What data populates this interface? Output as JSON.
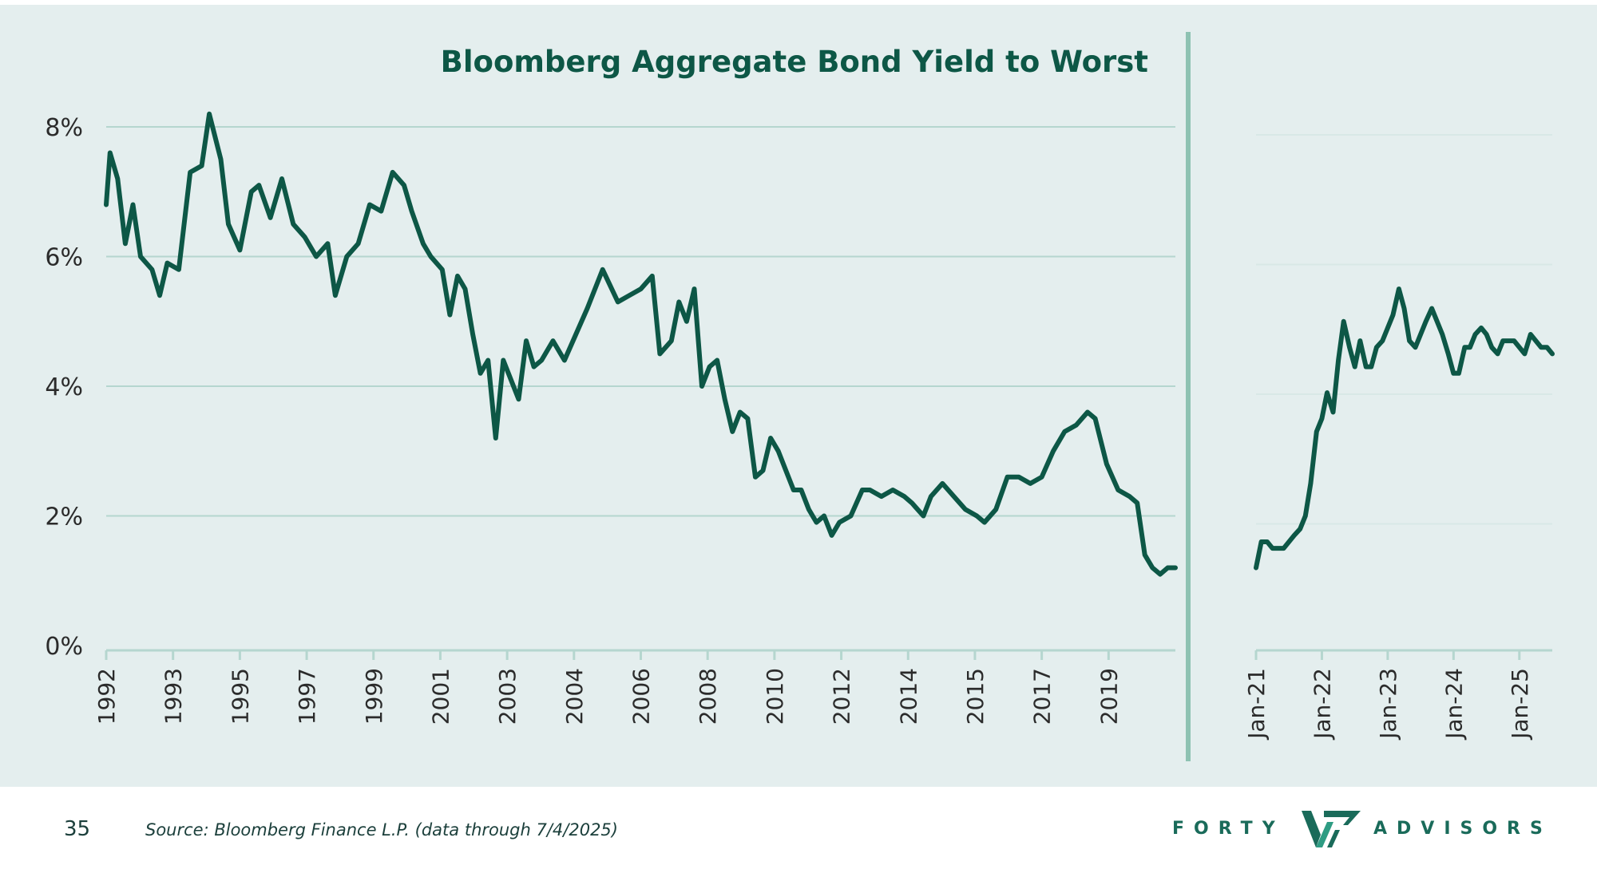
{
  "slide": {
    "page_number": "35",
    "source": "Source: Bloomberg Finance L.P. (data through 7/4/2025)",
    "logo": {
      "left_word": "FORTY",
      "right_word": "ADVISORS",
      "mark_icon": "forty-w-mark-icon"
    }
  },
  "colors": {
    "panel": "#e4eeee",
    "line": "#0d5746",
    "grid": "#b5d6cf",
    "divider": "#8ec2b2",
    "title": "#0d5746"
  },
  "chart_data": [
    {
      "type": "line",
      "title": "Bloomberg Aggregate Bond Yield to Worst",
      "xlabel": "",
      "ylabel": "",
      "ylim": [
        0,
        8
      ],
      "y_ticks": [
        "0%",
        "2%",
        "4%",
        "6%",
        "8%"
      ],
      "y_tick_values": [
        0,
        2,
        4,
        6,
        8
      ],
      "grid": true,
      "x_range": [
        1992.0,
        2020.0
      ],
      "x_tick_labels": [
        "1992",
        "1993",
        "1995",
        "1997",
        "1999",
        "2001",
        "2003",
        "2004",
        "2006",
        "2008",
        "2010",
        "2012",
        "2014",
        "2015",
        "2017",
        "2019"
      ],
      "x_tick_values": [
        1992.0,
        1993.75,
        1995.5,
        1997.25,
        1999.0,
        2000.75,
        2002.5,
        2004.25,
        2006.0,
        2007.75,
        2009.5,
        2011.25,
        2013.0,
        2014.75,
        2016.5,
        2018.25
      ],
      "series": [
        {
          "x": [
            1992.0,
            1992.1,
            1992.3,
            1992.5,
            1992.7,
            1992.9,
            1993.2,
            1993.4,
            1993.6,
            1993.9,
            1994.2,
            1994.5,
            1994.7,
            1995.0,
            1995.2,
            1995.5,
            1995.8,
            1996.0,
            1996.3,
            1996.6,
            1996.9,
            1997.2,
            1997.5,
            1997.8,
            1998.0,
            1998.3,
            1998.6,
            1998.9,
            1999.2,
            1999.5,
            1999.8,
            2000.0,
            2000.3,
            2000.5,
            2000.8,
            2001.0,
            2001.2,
            2001.4,
            2001.6,
            2001.8,
            2002.0,
            2002.2,
            2002.4,
            2002.6,
            2002.8,
            2003.0,
            2003.2,
            2003.4,
            2003.7,
            2004.0,
            2004.3,
            2004.6,
            2005.0,
            2005.4,
            2005.7,
            2006.0,
            2006.3,
            2006.5,
            2006.8,
            2007.0,
            2007.2,
            2007.4,
            2007.6,
            2007.8,
            2008.0,
            2008.2,
            2008.4,
            2008.6,
            2008.8,
            2009.0,
            2009.2,
            2009.4,
            2009.6,
            2009.8,
            2010.0,
            2010.2,
            2010.4,
            2010.6,
            2010.8,
            2011.0,
            2011.2,
            2011.5,
            2011.8,
            2012.0,
            2012.3,
            2012.6,
            2012.9,
            2013.1,
            2013.4,
            2013.6,
            2013.9,
            2014.2,
            2014.5,
            2014.8,
            2015.0,
            2015.3,
            2015.6,
            2015.9,
            2016.2,
            2016.5,
            2016.8,
            2017.1,
            2017.4,
            2017.7,
            2017.9,
            2018.2,
            2018.5,
            2018.8,
            2019.0,
            2019.2,
            2019.4,
            2019.6,
            2019.8,
            2020.0
          ],
          "values": [
            6.8,
            7.6,
            7.2,
            6.2,
            6.8,
            6.0,
            5.8,
            5.4,
            5.9,
            5.8,
            7.3,
            7.4,
            8.2,
            7.5,
            6.5,
            6.1,
            7.0,
            7.1,
            6.6,
            7.2,
            6.5,
            6.3,
            6.0,
            6.2,
            5.4,
            6.0,
            6.2,
            6.8,
            6.7,
            7.3,
            7.1,
            6.7,
            6.2,
            6.0,
            5.8,
            5.1,
            5.7,
            5.5,
            4.8,
            4.2,
            4.4,
            3.2,
            4.4,
            4.1,
            3.8,
            4.7,
            4.3,
            4.4,
            4.7,
            4.4,
            4.8,
            5.2,
            5.8,
            5.3,
            5.4,
            5.5,
            5.7,
            4.5,
            4.7,
            5.3,
            5.0,
            5.5,
            4.0,
            4.3,
            4.4,
            3.8,
            3.3,
            3.6,
            3.5,
            2.6,
            2.7,
            3.2,
            3.0,
            2.7,
            2.4,
            2.4,
            2.1,
            1.9,
            2.0,
            1.7,
            1.9,
            2.0,
            2.4,
            2.4,
            2.3,
            2.4,
            2.3,
            2.2,
            2.0,
            2.3,
            2.5,
            2.3,
            2.1,
            2.0,
            1.9,
            2.1,
            2.6,
            2.6,
            2.5,
            2.6,
            3.0,
            3.3,
            3.4,
            3.6,
            3.5,
            2.8,
            2.4,
            2.3,
            2.2,
            1.4,
            1.2,
            1.1,
            1.2,
            1.2
          ]
        }
      ]
    },
    {
      "type": "line",
      "title": "",
      "xlabel": "",
      "ylabel": "",
      "ylim": [
        0,
        8
      ],
      "y_tick_values": [
        0,
        2,
        4,
        6,
        8
      ],
      "grid": true,
      "x_range": [
        2021.0,
        2025.5
      ],
      "x_tick_labels": [
        "Jan-21",
        "Jan-22",
        "Jan-23",
        "Jan-24",
        "Jan-25"
      ],
      "x_tick_values": [
        2021.0,
        2022.0,
        2023.0,
        2024.0,
        2025.0
      ],
      "series": [
        {
          "x": [
            2021.0,
            2021.08,
            2021.17,
            2021.25,
            2021.33,
            2021.42,
            2021.5,
            2021.58,
            2021.67,
            2021.75,
            2021.83,
            2021.92,
            2022.0,
            2022.08,
            2022.17,
            2022.25,
            2022.33,
            2022.42,
            2022.5,
            2022.58,
            2022.67,
            2022.75,
            2022.83,
            2022.92,
            2023.0,
            2023.08,
            2023.17,
            2023.25,
            2023.33,
            2023.42,
            2023.5,
            2023.58,
            2023.67,
            2023.75,
            2023.83,
            2023.92,
            2024.0,
            2024.08,
            2024.17,
            2024.25,
            2024.33,
            2024.42,
            2024.5,
            2024.58,
            2024.67,
            2024.75,
            2024.83,
            2024.92,
            2025.0,
            2025.08,
            2025.17,
            2025.25,
            2025.33,
            2025.42,
            2025.5
          ],
          "values": [
            1.2,
            1.6,
            1.6,
            1.5,
            1.5,
            1.5,
            1.6,
            1.7,
            1.8,
            2.0,
            2.5,
            3.3,
            3.5,
            3.9,
            3.6,
            4.4,
            5.0,
            4.6,
            4.3,
            4.7,
            4.3,
            4.3,
            4.6,
            4.7,
            4.9,
            5.1,
            5.5,
            5.2,
            4.7,
            4.6,
            4.8,
            5.0,
            5.2,
            5.0,
            4.8,
            4.5,
            4.2,
            4.2,
            4.6,
            4.6,
            4.8,
            4.9,
            4.8,
            4.6,
            4.5,
            4.7,
            4.7,
            4.7,
            4.6,
            4.5,
            4.8,
            4.7,
            4.6,
            4.6,
            4.5
          ]
        }
      ]
    }
  ]
}
